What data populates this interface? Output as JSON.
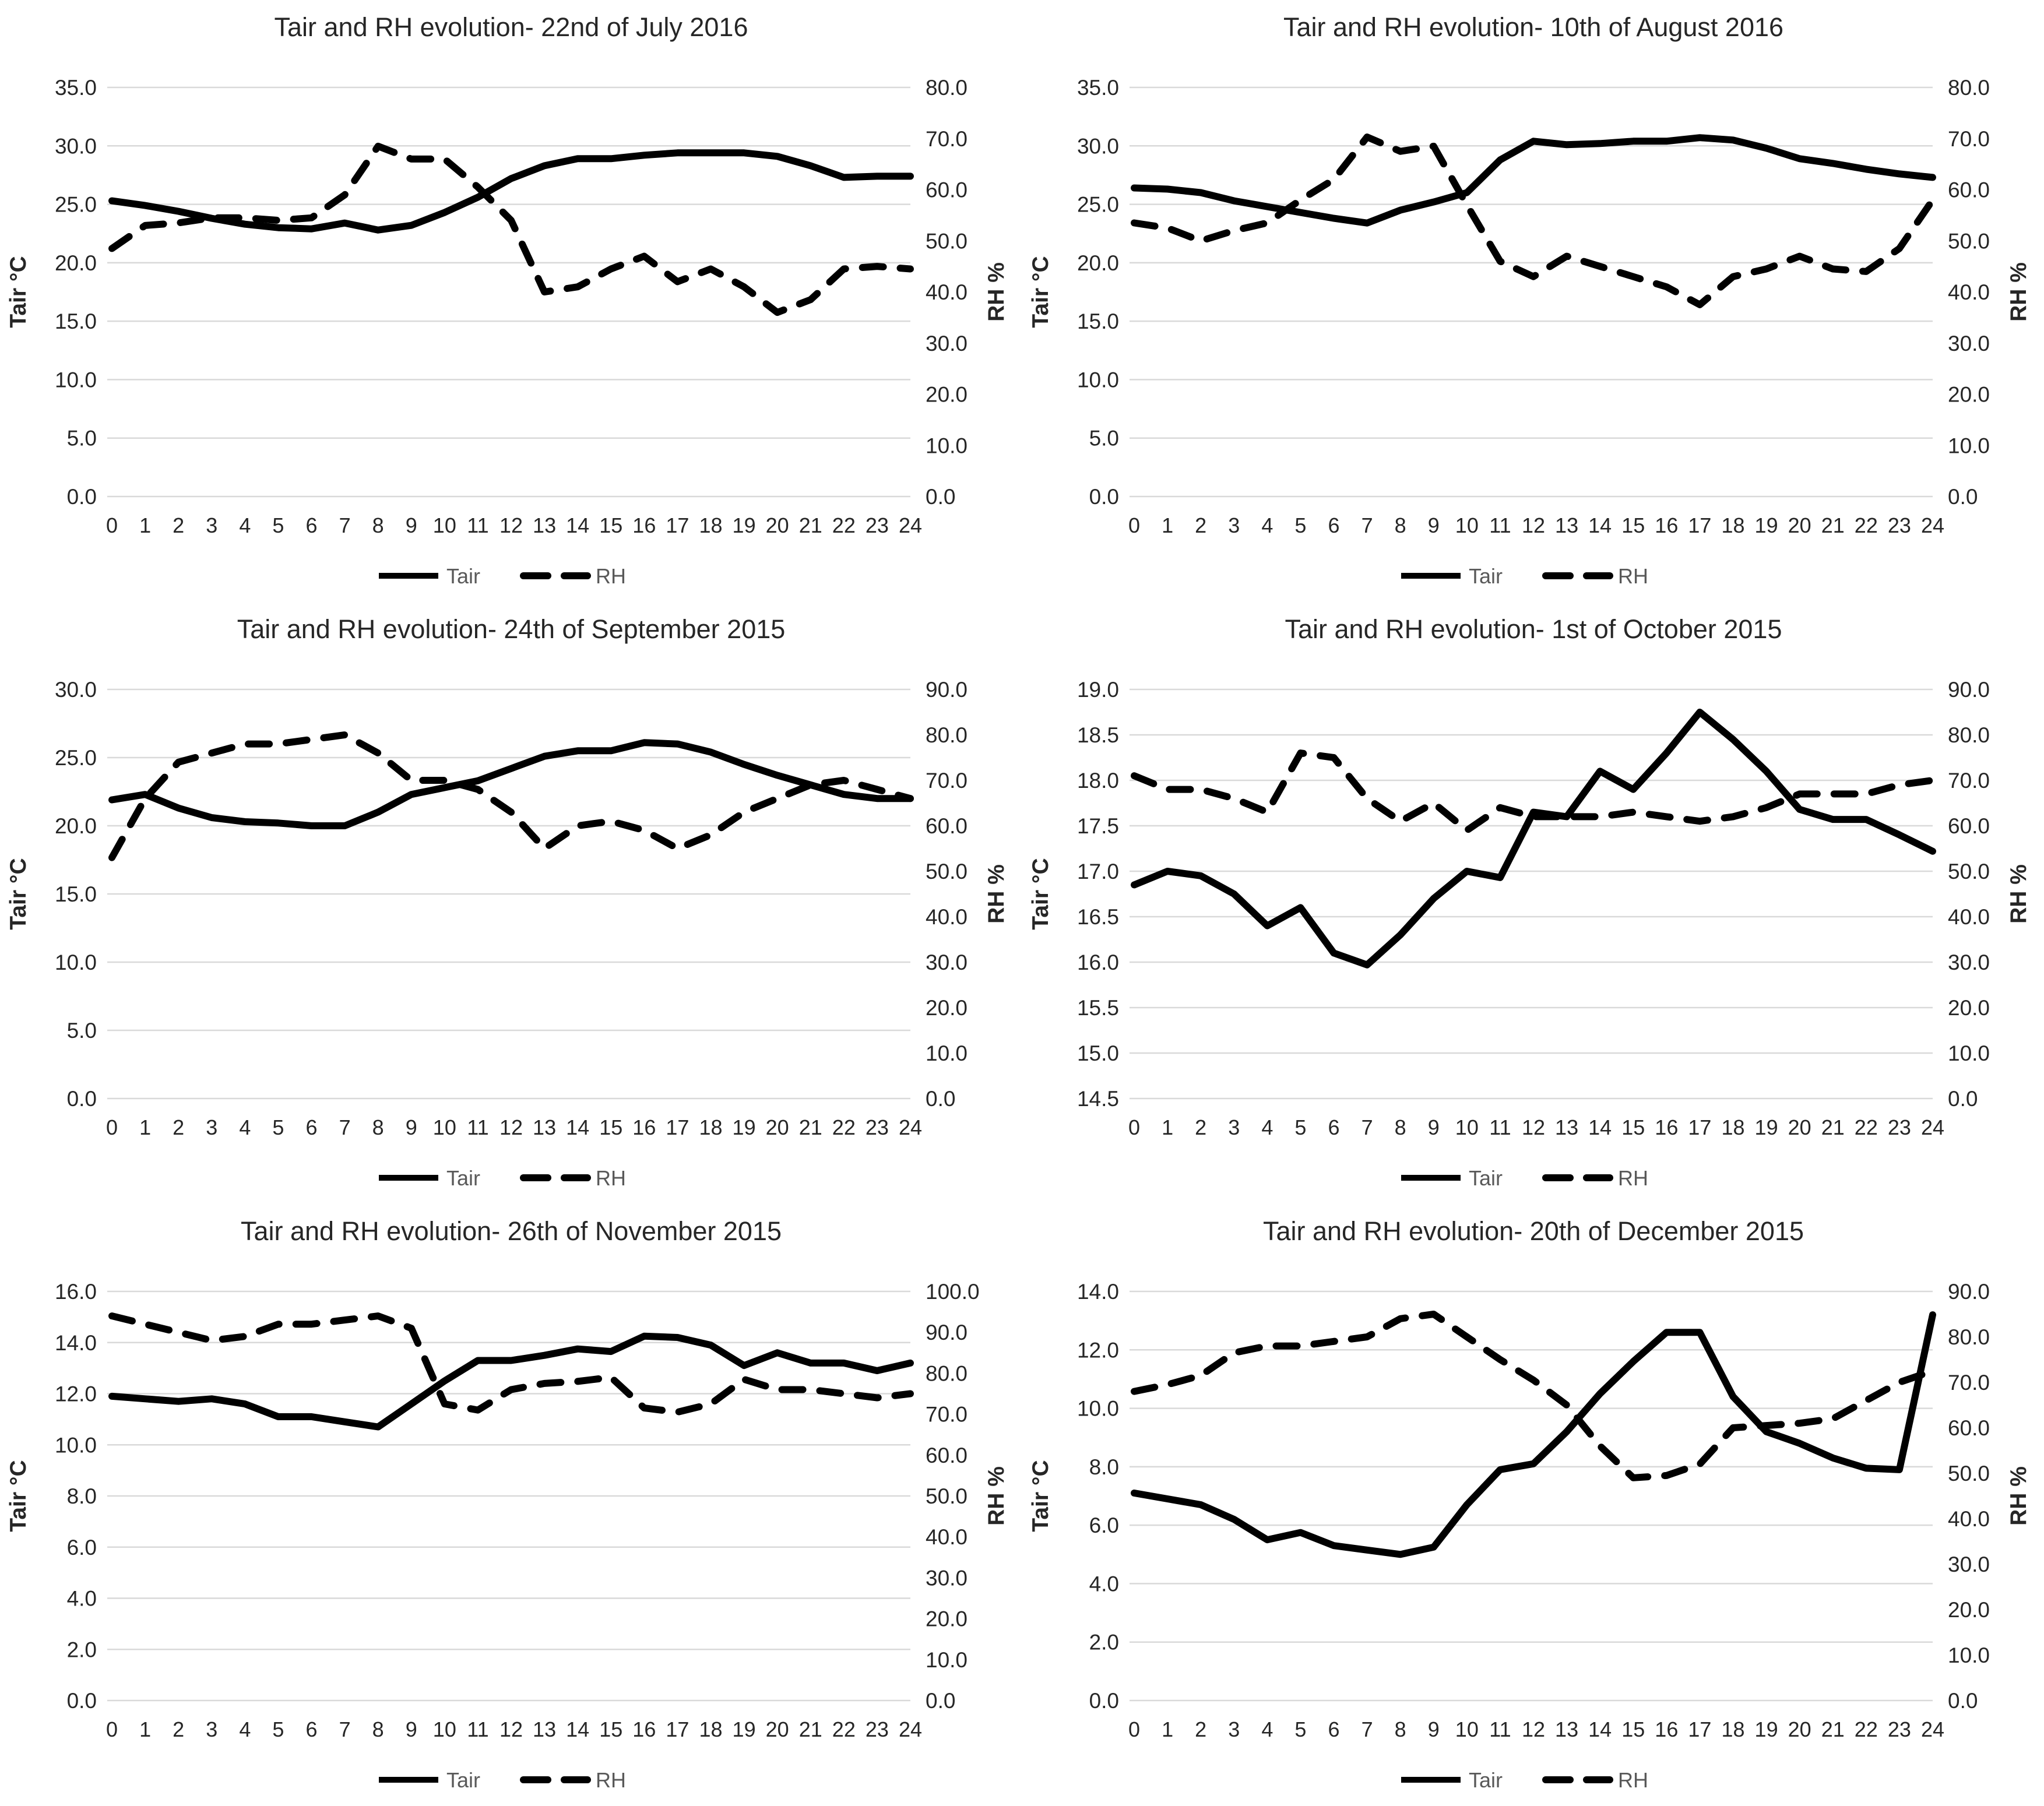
{
  "page": {
    "background": "#ffffff"
  },
  "colors": {
    "line": "#000000",
    "grid": "#d9d9d9",
    "tick_label": "#262626",
    "title": "#262626",
    "axis_title": "#262626",
    "legend_text": "#595959"
  },
  "legend": {
    "tair_label": "Tair",
    "rh_label": "RH"
  },
  "chart_data": [
    {
      "type": "line",
      "title": "Tair and RH evolution-  22nd of July 2016",
      "x_ticks": [
        0,
        1,
        2,
        3,
        4,
        5,
        6,
        7,
        8,
        9,
        10,
        11,
        12,
        13,
        14,
        15,
        16,
        17,
        18,
        19,
        20,
        21,
        22,
        23,
        24
      ],
      "left_axis": {
        "title": "Tair °C",
        "min": 0,
        "max": 35,
        "step": 5
      },
      "right_axis": {
        "title": "RH %",
        "min": 0,
        "max": 80,
        "step": 10
      },
      "grid": true,
      "legend_position": "bottom",
      "series": [
        {
          "name": "Tair",
          "axis": "left",
          "line_style": "solid",
          "values": [
            25.3,
            24.9,
            24.4,
            23.8,
            23.3,
            23.0,
            22.9,
            23.4,
            22.8,
            23.2,
            24.3,
            25.6,
            27.2,
            28.3,
            28.9,
            28.9,
            29.2,
            29.4,
            29.4,
            29.4,
            29.1,
            28.3,
            27.3,
            27.4,
            27.4
          ]
        },
        {
          "name": "RH",
          "axis": "right",
          "line_style": "dashed",
          "values": [
            48.5,
            53,
            53.5,
            54.5,
            54.5,
            54,
            54.5,
            59,
            68.5,
            66,
            66,
            60.5,
            54,
            40,
            41,
            44.5,
            47,
            42,
            44.5,
            41,
            36,
            38.5,
            44.5,
            45,
            44.5
          ]
        }
      ]
    },
    {
      "type": "line",
      "title": "Tair and RH evolution-  10th of August 2016",
      "x_ticks": [
        0,
        1,
        2,
        3,
        4,
        5,
        6,
        7,
        8,
        9,
        10,
        11,
        12,
        13,
        14,
        15,
        16,
        17,
        18,
        19,
        20,
        21,
        22,
        23,
        24
      ],
      "left_axis": {
        "title": "Tair °C",
        "min": 0,
        "max": 35,
        "step": 5
      },
      "right_axis": {
        "title": "RH %",
        "min": 0,
        "max": 80,
        "step": 10
      },
      "grid": true,
      "legend_position": "bottom",
      "series": [
        {
          "name": "Tair",
          "axis": "left",
          "line_style": "solid",
          "values": [
            26.4,
            26.3,
            26.0,
            25.3,
            24.8,
            24.3,
            23.8,
            23.4,
            24.5,
            25.2,
            26.0,
            28.8,
            30.4,
            30.1,
            30.2,
            30.4,
            30.4,
            30.7,
            30.5,
            29.8,
            28.9,
            28.5,
            28.0,
            27.6,
            27.3
          ]
        },
        {
          "name": "RH",
          "axis": "right",
          "line_style": "dashed",
          "values": [
            53.5,
            52.5,
            50,
            52,
            53.5,
            58,
            62,
            70.3,
            67.5,
            68.5,
            57,
            46,
            43,
            47,
            45,
            43,
            41,
            37.5,
            43,
            44.5,
            47,
            44.5,
            44,
            48.5,
            58
          ]
        }
      ]
    },
    {
      "type": "line",
      "title": "Tair and RH evolution-  24th of September 2015",
      "x_ticks": [
        0,
        1,
        2,
        3,
        4,
        5,
        6,
        7,
        8,
        9,
        10,
        11,
        12,
        13,
        14,
        15,
        16,
        17,
        18,
        19,
        20,
        21,
        22,
        23,
        24
      ],
      "left_axis": {
        "title": "Tair °C",
        "min": 0,
        "max": 30,
        "step": 5
      },
      "right_axis": {
        "title": "RH %",
        "min": 0,
        "max": 90,
        "step": 10
      },
      "grid": true,
      "legend_position": "bottom",
      "series": [
        {
          "name": "Tair",
          "axis": "left",
          "line_style": "solid",
          "values": [
            21.9,
            22.3,
            21.3,
            20.6,
            20.3,
            20.2,
            20.0,
            20.0,
            21.0,
            22.3,
            22.8,
            23.3,
            24.2,
            25.1,
            25.5,
            25.5,
            26.1,
            26.0,
            25.4,
            24.5,
            23.7,
            23.0,
            22.3,
            22.0,
            22.0
          ]
        },
        {
          "name": "RH",
          "axis": "right",
          "line_style": "dashed",
          "values": [
            53,
            66,
            74,
            76,
            78,
            78,
            79,
            80,
            76,
            70,
            70,
            68,
            63,
            55,
            60,
            61,
            59,
            55,
            58,
            63,
            66,
            69,
            70,
            68,
            66
          ]
        }
      ]
    },
    {
      "type": "line",
      "title": "Tair and RH evolution-  1st of October 2015",
      "x_ticks": [
        0,
        1,
        2,
        3,
        4,
        5,
        6,
        7,
        8,
        9,
        10,
        11,
        12,
        13,
        14,
        15,
        16,
        17,
        18,
        19,
        20,
        21,
        22,
        23,
        24
      ],
      "left_axis": {
        "title": "Tair °C",
        "min": 14.5,
        "max": 19.0,
        "step": 0.5
      },
      "right_axis": {
        "title": "RH %",
        "min": 0,
        "max": 90,
        "step": 10
      },
      "grid": true,
      "legend_position": "bottom",
      "series": [
        {
          "name": "Tair",
          "axis": "left",
          "line_style": "solid",
          "values": [
            16.85,
            17.0,
            16.95,
            16.75,
            16.4,
            16.6,
            16.1,
            15.97,
            16.3,
            16.7,
            17.0,
            16.93,
            17.65,
            17.6,
            18.1,
            17.9,
            18.3,
            18.75,
            18.45,
            18.1,
            17.68,
            17.57,
            17.57,
            17.4,
            17.22
          ]
        },
        {
          "name": "RH",
          "axis": "right",
          "line_style": "dashed",
          "values": [
            71,
            68,
            68,
            66,
            63,
            76,
            75,
            66,
            61,
            65,
            59,
            64,
            62,
            62,
            62,
            63,
            62,
            61,
            62,
            64,
            67,
            67,
            67,
            69,
            70
          ]
        }
      ]
    },
    {
      "type": "line",
      "title": "Tair and RH evolution-  26th of November 2015",
      "x_ticks": [
        0,
        1,
        2,
        3,
        4,
        5,
        6,
        7,
        8,
        9,
        10,
        11,
        12,
        13,
        14,
        15,
        16,
        17,
        18,
        19,
        20,
        21,
        22,
        23,
        24
      ],
      "left_axis": {
        "title": "Tair °C",
        "min": 0,
        "max": 16,
        "step": 2
      },
      "right_axis": {
        "title": "RH %",
        "min": 0,
        "max": 100,
        "step": 10
      },
      "grid": true,
      "legend_position": "bottom",
      "series": [
        {
          "name": "Tair",
          "axis": "left",
          "line_style": "solid",
          "values": [
            11.9,
            11.8,
            11.7,
            11.8,
            11.6,
            11.1,
            11.1,
            10.9,
            10.7,
            11.6,
            12.5,
            13.3,
            13.3,
            13.5,
            13.75,
            13.65,
            14.25,
            14.2,
            13.9,
            13.1,
            13.6,
            13.2,
            13.2,
            12.9,
            13.2
          ]
        },
        {
          "name": "RH",
          "axis": "right",
          "line_style": "dashed",
          "values": [
            94,
            92,
            90,
            88,
            89,
            92,
            92,
            93,
            94,
            91,
            72.5,
            71,
            76,
            77.5,
            78,
            79,
            71.5,
            70.5,
            72.5,
            78.5,
            76,
            76,
            75,
            74,
            75
          ]
        }
      ]
    },
    {
      "type": "line",
      "title": "Tair and RH evolution-  20th of December 2015",
      "x_ticks": [
        0,
        1,
        2,
        3,
        4,
        5,
        6,
        7,
        8,
        9,
        10,
        11,
        12,
        13,
        14,
        15,
        16,
        17,
        18,
        19,
        20,
        21,
        22,
        23,
        24
      ],
      "left_axis": {
        "title": "Tair °C",
        "min": 0,
        "max": 14,
        "step": 2
      },
      "right_axis": {
        "title": "RH %",
        "min": 0,
        "max": 90,
        "step": 10
      },
      "grid": true,
      "legend_position": "bottom",
      "series": [
        {
          "name": "Tair",
          "axis": "left",
          "line_style": "solid",
          "values": [
            7.1,
            6.9,
            6.7,
            6.2,
            5.5,
            5.75,
            5.3,
            5.15,
            5.0,
            5.25,
            6.7,
            7.9,
            8.1,
            9.2,
            10.5,
            11.6,
            12.6,
            12.6,
            10.4,
            9.2,
            8.8,
            8.3,
            7.95,
            7.9,
            13.2
          ]
        },
        {
          "name": "RH",
          "axis": "right",
          "line_style": "dashed",
          "values": [
            68,
            69.5,
            71.5,
            76.5,
            78,
            78,
            79,
            80,
            84,
            85,
            80,
            75,
            70.5,
            65,
            56,
            49,
            49.5,
            52,
            60,
            60.5,
            61,
            62,
            66,
            70,
            72.5
          ]
        }
      ]
    }
  ]
}
